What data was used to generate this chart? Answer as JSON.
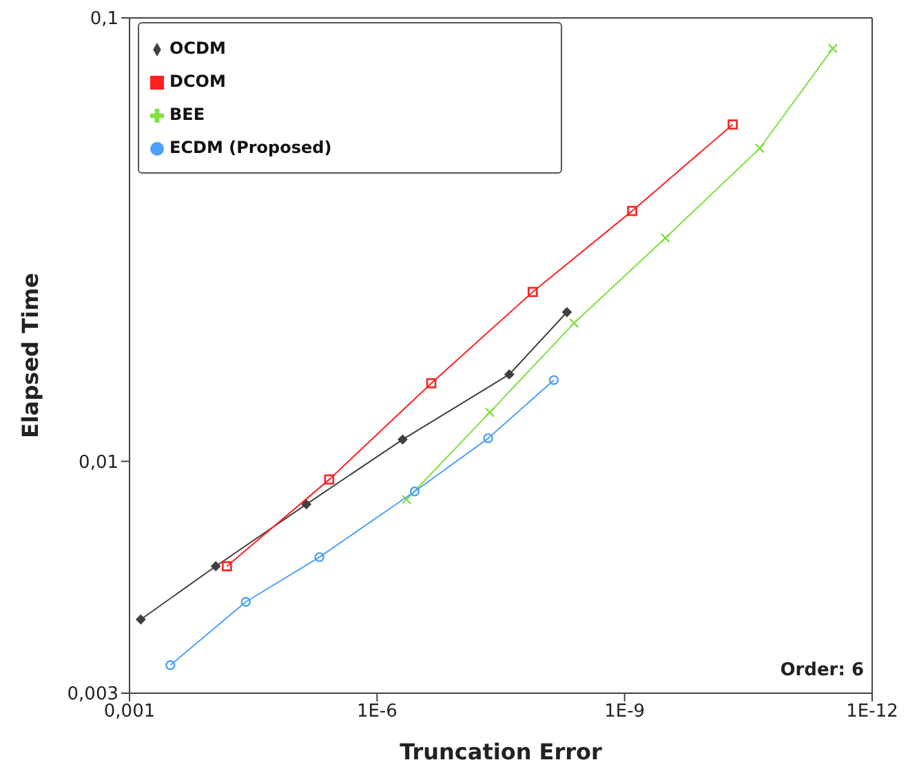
{
  "chart_data": {
    "type": "line",
    "xlabel": "Truncation Error",
    "ylabel": "Elapsed Time",
    "log": "xy",
    "grid": false,
    "legend": "top left",
    "annotations": [
      "Order: 6"
    ],
    "xlim": [
      0.001,
      1e-12
    ],
    "xticks": [
      {
        "value": 0.001,
        "label": "0,001"
      },
      {
        "value": 1e-06,
        "label": "1E-6"
      },
      {
        "value": 1e-09,
        "label": "1E-9"
      },
      {
        "value": 1e-12,
        "label": "1E-12"
      }
    ],
    "ylim": [
      0.003,
      0.1
    ],
    "yticks": [
      {
        "value": 0.003,
        "label": "0,003"
      },
      {
        "value": 0.01,
        "label": "0,01"
      },
      {
        "value": 0.1,
        "label": "0,1"
      }
    ],
    "series": [
      {
        "name": "OCDM",
        "color": "#404040",
        "marker": "diamond",
        "x": [
          0.00073,
          9e-05,
          7.2e-06,
          4.9e-07,
          2.5e-08,
          5e-09
        ],
        "values": [
          0.0044,
          0.0058,
          0.008,
          0.0112,
          0.0157,
          0.0217
        ]
      },
      {
        "name": "DCOM",
        "color": "#ff2020",
        "marker": "square",
        "x": [
          6.6e-05,
          3.8e-06,
          2.2e-07,
          1.3e-08,
          8.1e-10,
          4.9e-11
        ],
        "values": [
          0.0058,
          0.0091,
          0.015,
          0.0241,
          0.0367,
          0.0575
        ]
      },
      {
        "name": "BEE",
        "color": "#80e040",
        "marker": "cross",
        "x": [
          4.4e-07,
          4.3e-08,
          4.1e-09,
          3.2e-10,
          2.3e-11,
          3e-12
        ],
        "values": [
          0.0082,
          0.0129,
          0.0205,
          0.0319,
          0.0508,
          0.0853
        ]
      },
      {
        "name": "ECDM (Proposed)",
        "color": "#4ca0ff",
        "marker": "circle",
        "x": [
          0.00032,
          3.9e-05,
          5e-06,
          3.5e-07,
          4.5e-08,
          7.2e-09
        ],
        "values": [
          0.00347,
          0.00482,
          0.00608,
          0.00855,
          0.01127,
          0.01525
        ]
      }
    ]
  }
}
